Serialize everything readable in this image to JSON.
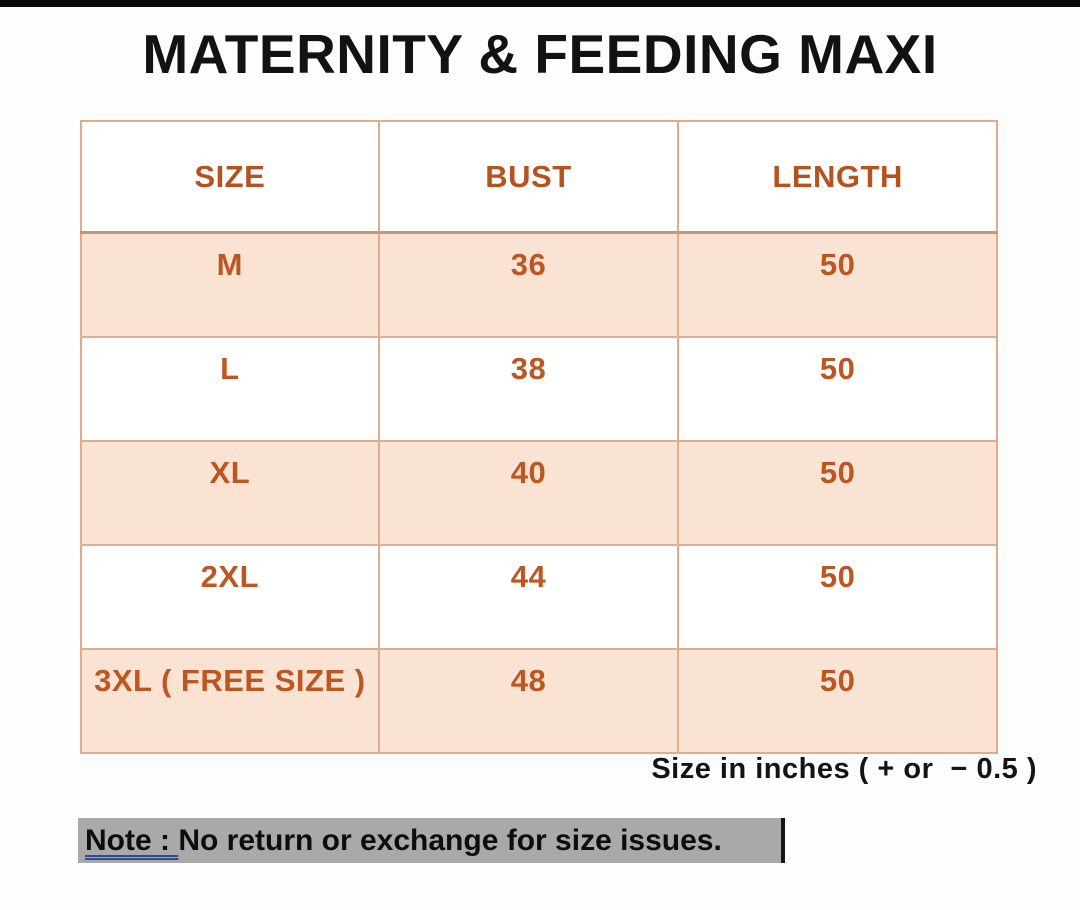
{
  "chart_data": {
    "type": "table",
    "title": "MATERNITY & FEEDING MAXI",
    "columns": [
      "SIZE",
      "BUST",
      "LENGTH"
    ],
    "rows": [
      [
        "M",
        36,
        50
      ],
      [
        "L",
        38,
        50
      ],
      [
        "XL",
        40,
        50
      ],
      [
        "2XL",
        44,
        50
      ],
      [
        "3XL ( FREE SIZE )",
        48,
        50
      ]
    ],
    "units_note": "Size in inches ( + or  − 0.5 )",
    "highlighted_row_indices": [
      0,
      2,
      4
    ]
  },
  "caption": "Size in inches ( + or  − 0.5 )",
  "note": {
    "label": "Note : ",
    "text": "No return or exchange for size issues."
  },
  "colors": {
    "accent_text": "#b9541f",
    "row_highlight": "#fbe3d4",
    "table_border": "#dfac8d",
    "table_outer_border": "#c9a184",
    "note_highlight": "#a9a9a9",
    "note_underline": "#2e4b8f",
    "top_bar": "#0a0a0a"
  }
}
